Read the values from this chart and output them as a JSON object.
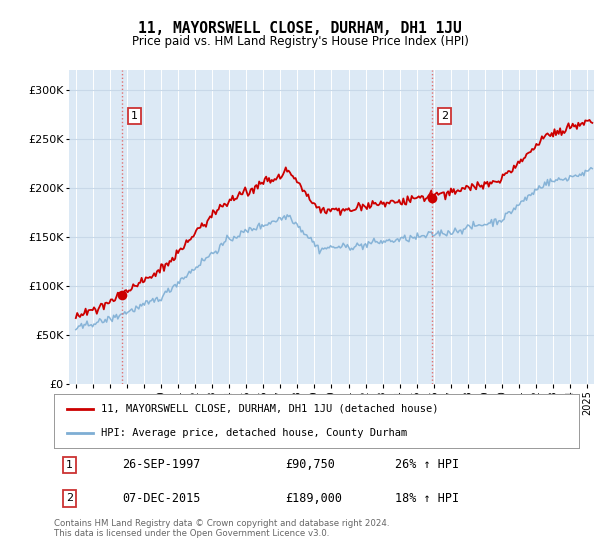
{
  "title": "11, MAYORSWELL CLOSE, DURHAM, DH1 1JU",
  "subtitle": "Price paid vs. HM Land Registry's House Price Index (HPI)",
  "legend_line1": "11, MAYORSWELL CLOSE, DURHAM, DH1 1JU (detached house)",
  "legend_line2": "HPI: Average price, detached house, County Durham",
  "annotation1_date": "26-SEP-1997",
  "annotation1_price": "£90,750",
  "annotation1_hpi": "26% ↑ HPI",
  "annotation2_date": "07-DEC-2015",
  "annotation2_price": "£189,000",
  "annotation2_hpi": "18% ↑ HPI",
  "footer": "Contains HM Land Registry data © Crown copyright and database right 2024.\nThis data is licensed under the Open Government Licence v3.0.",
  "sale1_year": 1997.73,
  "sale1_price": 90750,
  "sale2_year": 2015.92,
  "sale2_price": 189000,
  "red_line_color": "#cc0000",
  "blue_line_color": "#7eaed4",
  "dashed_line_color": "#e07070",
  "plot_bg_color": "#dce9f5",
  "grid_color": "#c8d8e8",
  "ylim": [
    0,
    320000
  ],
  "xlim_start": 1994.6,
  "xlim_end": 2025.4
}
